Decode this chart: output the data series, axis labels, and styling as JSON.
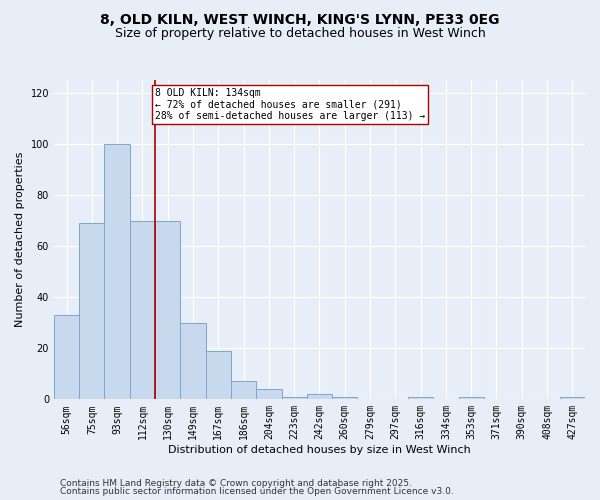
{
  "title_line1": "8, OLD KILN, WEST WINCH, KING'S LYNN, PE33 0EG",
  "title_line2": "Size of property relative to detached houses in West Winch",
  "xlabel": "Distribution of detached houses by size in West Winch",
  "ylabel": "Number of detached properties",
  "categories": [
    "56sqm",
    "75sqm",
    "93sqm",
    "112sqm",
    "130sqm",
    "149sqm",
    "167sqm",
    "186sqm",
    "204sqm",
    "223sqm",
    "242sqm",
    "260sqm",
    "279sqm",
    "297sqm",
    "316sqm",
    "334sqm",
    "353sqm",
    "371sqm",
    "390sqm",
    "408sqm",
    "427sqm"
  ],
  "values": [
    33,
    69,
    100,
    70,
    70,
    30,
    19,
    7,
    4,
    1,
    2,
    1,
    0,
    0,
    1,
    0,
    1,
    0,
    0,
    0,
    1
  ],
  "bar_color": "#c9d9ed",
  "bar_edge_color": "#7ba7cc",
  "vline_x_index": 3.5,
  "vline_color": "#aa0000",
  "annotation_text": "8 OLD KILN: 134sqm\n← 72% of detached houses are smaller (291)\n28% of semi-detached houses are larger (113) →",
  "annotation_box_color": "white",
  "annotation_box_edge": "#aa0000",
  "ylim": [
    0,
    125
  ],
  "yticks": [
    0,
    20,
    40,
    60,
    80,
    100,
    120
  ],
  "footer_line1": "Contains HM Land Registry data © Crown copyright and database right 2025.",
  "footer_line2": "Contains public sector information licensed under the Open Government Licence v3.0.",
  "bg_color": "#e8eef7",
  "plot_bg_color": "#e8eef7",
  "title_fontsize": 10,
  "subtitle_fontsize": 9,
  "tick_fontsize": 7,
  "label_fontsize": 8,
  "footer_fontsize": 6.5
}
